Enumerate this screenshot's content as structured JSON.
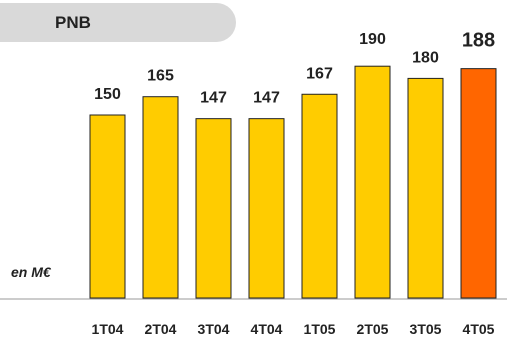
{
  "title": "PNB",
  "unit_label": "en M€",
  "colors": {
    "bar": "#ffcc00",
    "highlight": "#ff6600",
    "bar_stroke": "#222222",
    "axis": "#999999",
    "title_bg": "#d9d9d9"
  },
  "chart_data": {
    "type": "bar",
    "title": "PNB",
    "ylabel": "en M€",
    "xlabel": "",
    "categories": [
      "1T04",
      "2T04",
      "3T04",
      "4T04",
      "1T05",
      "2T05",
      "3T05",
      "4T05"
    ],
    "values": [
      150,
      165,
      147,
      147,
      167,
      190,
      180,
      188
    ],
    "highlight_index": 7,
    "ylim": [
      0,
      200
    ],
    "grid": false,
    "legend": "none"
  }
}
